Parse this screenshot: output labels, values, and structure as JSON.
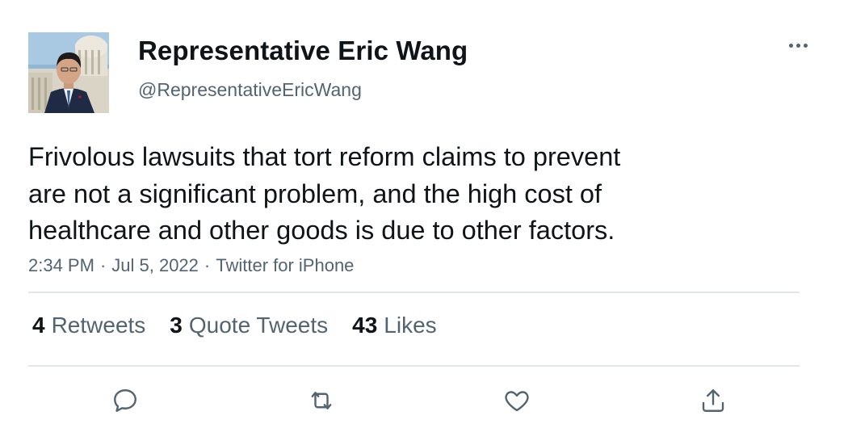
{
  "tweet": {
    "display_name": "Representative Eric Wang",
    "handle": "@RepresentativeEricWang",
    "text_lines": [
      "Frivolous lawsuits that tort reform claims to prevent",
      "are not a significant problem, and the high cost of",
      "healthcare and other goods is due to other factors."
    ],
    "time": "2:34 PM",
    "date": "Jul 5, 2022",
    "source": "Twitter for iPhone",
    "separator": "·"
  },
  "stats": {
    "retweets_count": "4",
    "retweets_label": "Retweets",
    "quotes_count": "3",
    "quotes_label": "Quote Tweets",
    "likes_count": "43",
    "likes_label": "Likes"
  },
  "icons": {
    "more": "more-horizontal-icon",
    "reply": "reply-icon",
    "retweet": "retweet-icon",
    "like": "heart-icon",
    "share": "share-icon"
  },
  "colors": {
    "text_primary": "#0f1419",
    "text_secondary": "#536471",
    "divider": "#e1e6ea"
  }
}
